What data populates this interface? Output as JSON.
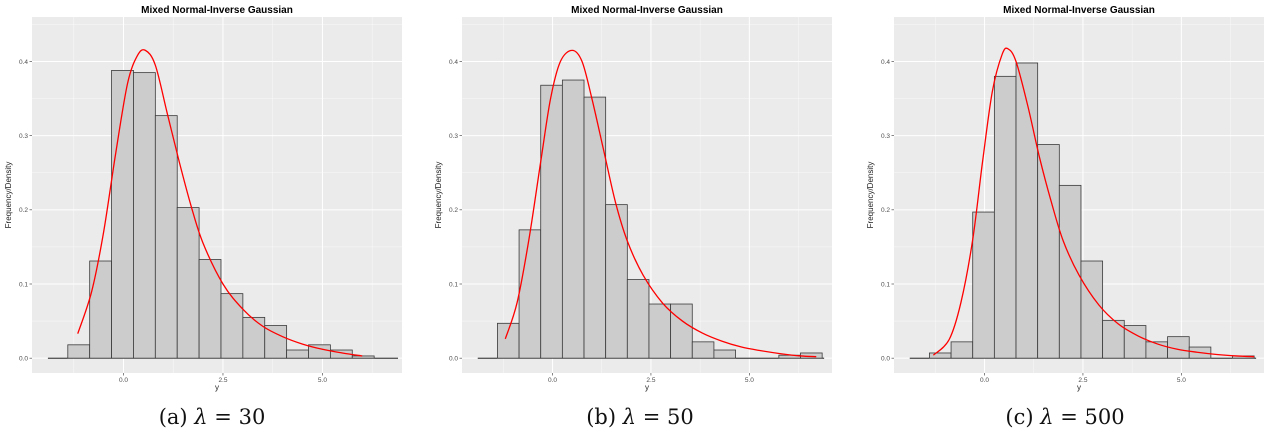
{
  "captions": [
    {
      "letter": "(a)",
      "symbol": "λ",
      "eq": "=",
      "value": "30"
    },
    {
      "letter": "(b)",
      "symbol": "λ",
      "eq": "=",
      "value": "50"
    },
    {
      "letter": "(c)",
      "symbol": "λ",
      "eq": "=",
      "value": "500"
    }
  ],
  "colors": {
    "panel_background": "#ebebeb",
    "grid_major": "#ffffff",
    "bar_fill": "#cccccc",
    "bar_outline": "#3a3a3a",
    "density_curve": "#ff0000"
  },
  "chart_data": [
    {
      "type": "bar",
      "title": "Mixed Normal-Inverse Gaussian",
      "xlabel": "y",
      "ylabel": "Frequency/Density",
      "xlim": [
        -2.3,
        7.0
      ],
      "ylim": [
        -0.02,
        0.46
      ],
      "xticks": [
        0.0,
        2.5,
        5.0
      ],
      "xtick_labels": [
        "0.0",
        "2.5",
        "5.0"
      ],
      "yticks": [
        0.0,
        0.1,
        0.2,
        0.3,
        0.4
      ],
      "ytick_labels": [
        "0.0",
        "0.1",
        "0.2",
        "0.3",
        "0.4"
      ],
      "grid": true,
      "bins": [
        {
          "x0": -1.4,
          "x1": -0.85,
          "value": 0.018
        },
        {
          "x0": -0.85,
          "x1": -0.3,
          "value": 0.131
        },
        {
          "x0": -0.3,
          "x1": 0.25,
          "value": 0.388
        },
        {
          "x0": 0.25,
          "x1": 0.8,
          "value": 0.385
        },
        {
          "x0": 0.8,
          "x1": 1.35,
          "value": 0.327
        },
        {
          "x0": 1.35,
          "x1": 1.9,
          "value": 0.203
        },
        {
          "x0": 1.9,
          "x1": 2.45,
          "value": 0.133
        },
        {
          "x0": 2.45,
          "x1": 3.0,
          "value": 0.087
        },
        {
          "x0": 3.0,
          "x1": 3.55,
          "value": 0.055
        },
        {
          "x0": 3.55,
          "x1": 4.1,
          "value": 0.044
        },
        {
          "x0": 4.1,
          "x1": 4.65,
          "value": 0.011
        },
        {
          "x0": 4.65,
          "x1": 5.2,
          "value": 0.018
        },
        {
          "x0": 5.2,
          "x1": 5.75,
          "value": 0.011
        },
        {
          "x0": 5.75,
          "x1": 6.3,
          "value": 0.003
        }
      ],
      "baseline": [
        -1.9,
        6.9
      ],
      "density_curve": [
        [
          -1.15,
          0.033
        ],
        [
          -0.8,
          0.09
        ],
        [
          -0.5,
          0.17
        ],
        [
          -0.2,
          0.275
        ],
        [
          0.1,
          0.37
        ],
        [
          0.35,
          0.408
        ],
        [
          0.55,
          0.415
        ],
        [
          0.8,
          0.395
        ],
        [
          1.1,
          0.33
        ],
        [
          1.4,
          0.265
        ],
        [
          1.7,
          0.205
        ],
        [
          2.0,
          0.155
        ],
        [
          2.5,
          0.1
        ],
        [
          3.0,
          0.066
        ],
        [
          3.5,
          0.043
        ],
        [
          4.0,
          0.029
        ],
        [
          4.5,
          0.019
        ],
        [
          5.0,
          0.012
        ],
        [
          5.5,
          0.007
        ],
        [
          6.0,
          0.003
        ]
      ]
    },
    {
      "type": "bar",
      "title": "Mixed Normal-Inverse Gaussian",
      "xlabel": "y",
      "ylabel": "Frequency/Density",
      "xlim": [
        -2.3,
        7.1
      ],
      "ylim": [
        -0.02,
        0.46
      ],
      "xticks": [
        0.0,
        2.5,
        5.0
      ],
      "xtick_labels": [
        "0.0",
        "2.5",
        "5.0"
      ],
      "yticks": [
        0.0,
        0.1,
        0.2,
        0.3,
        0.4
      ],
      "ytick_labels": [
        "0.0",
        "0.1",
        "0.2",
        "0.3",
        "0.4"
      ],
      "grid": true,
      "bins": [
        {
          "x0": -1.4,
          "x1": -0.85,
          "value": 0.047
        },
        {
          "x0": -0.85,
          "x1": -0.3,
          "value": 0.173
        },
        {
          "x0": -0.3,
          "x1": 0.25,
          "value": 0.368
        },
        {
          "x0": 0.25,
          "x1": 0.8,
          "value": 0.375
        },
        {
          "x0": 0.8,
          "x1": 1.35,
          "value": 0.352
        },
        {
          "x0": 1.35,
          "x1": 1.9,
          "value": 0.207
        },
        {
          "x0": 1.9,
          "x1": 2.45,
          "value": 0.106
        },
        {
          "x0": 2.45,
          "x1": 3.0,
          "value": 0.073
        },
        {
          "x0": 3.0,
          "x1": 3.55,
          "value": 0.073
        },
        {
          "x0": 3.55,
          "x1": 4.1,
          "value": 0.022
        },
        {
          "x0": 4.1,
          "x1": 4.65,
          "value": 0.011
        },
        {
          "x0": 4.65,
          "x1": 5.2,
          "value": 0.0
        },
        {
          "x0": 5.2,
          "x1": 5.75,
          "value": 0.0
        },
        {
          "x0": 5.75,
          "x1": 6.3,
          "value": 0.004
        },
        {
          "x0": 6.3,
          "x1": 6.85,
          "value": 0.007
        }
      ],
      "baseline": [
        -1.9,
        6.9
      ],
      "density_curve": [
        [
          -1.2,
          0.026
        ],
        [
          -0.9,
          0.075
        ],
        [
          -0.6,
          0.16
        ],
        [
          -0.3,
          0.265
        ],
        [
          -0.05,
          0.35
        ],
        [
          0.2,
          0.4
        ],
        [
          0.5,
          0.415
        ],
        [
          0.75,
          0.4
        ],
        [
          1.0,
          0.35
        ],
        [
          1.3,
          0.28
        ],
        [
          1.6,
          0.21
        ],
        [
          1.9,
          0.158
        ],
        [
          2.3,
          0.112
        ],
        [
          2.8,
          0.074
        ],
        [
          3.3,
          0.05
        ],
        [
          3.8,
          0.034
        ],
        [
          4.3,
          0.023
        ],
        [
          4.8,
          0.015
        ],
        [
          5.3,
          0.01
        ],
        [
          5.8,
          0.006
        ],
        [
          6.3,
          0.003
        ],
        [
          6.7,
          0.002
        ]
      ]
    },
    {
      "type": "bar",
      "title": "Mixed Normal-Inverse Gaussian",
      "xlabel": "y",
      "ylabel": "Frequency/Density",
      "xlim": [
        -2.3,
        7.1
      ],
      "ylim": [
        -0.02,
        0.46
      ],
      "xticks": [
        0.0,
        2.5,
        5.0
      ],
      "xtick_labels": [
        "0.0",
        "2.5",
        "5.0"
      ],
      "yticks": [
        0.0,
        0.1,
        0.2,
        0.3,
        0.4
      ],
      "ytick_labels": [
        "0.0",
        "0.1",
        "0.2",
        "0.3",
        "0.4"
      ],
      "grid": true,
      "bins": [
        {
          "x0": -1.4,
          "x1": -0.85,
          "value": 0.007
        },
        {
          "x0": -0.85,
          "x1": -0.3,
          "value": 0.022
        },
        {
          "x0": -0.3,
          "x1": 0.25,
          "value": 0.197
        },
        {
          "x0": 0.25,
          "x1": 0.8,
          "value": 0.38
        },
        {
          "x0": 0.8,
          "x1": 1.35,
          "value": 0.398
        },
        {
          "x0": 1.35,
          "x1": 1.9,
          "value": 0.288
        },
        {
          "x0": 1.9,
          "x1": 2.45,
          "value": 0.233
        },
        {
          "x0": 2.45,
          "x1": 3.0,
          "value": 0.131
        },
        {
          "x0": 3.0,
          "x1": 3.55,
          "value": 0.051
        },
        {
          "x0": 3.55,
          "x1": 4.1,
          "value": 0.044
        },
        {
          "x0": 4.1,
          "x1": 4.65,
          "value": 0.022
        },
        {
          "x0": 4.65,
          "x1": 5.2,
          "value": 0.029
        },
        {
          "x0": 5.2,
          "x1": 5.75,
          "value": 0.015
        },
        {
          "x0": 5.75,
          "x1": 6.3,
          "value": 0.0
        },
        {
          "x0": 6.3,
          "x1": 6.85,
          "value": 0.003
        }
      ],
      "baseline": [
        -1.9,
        6.9
      ],
      "density_curve": [
        [
          -1.3,
          0.004
        ],
        [
          -0.9,
          0.025
        ],
        [
          -0.6,
          0.075
        ],
        [
          -0.3,
          0.16
        ],
        [
          -0.05,
          0.265
        ],
        [
          0.2,
          0.36
        ],
        [
          0.45,
          0.41
        ],
        [
          0.6,
          0.417
        ],
        [
          0.8,
          0.4
        ],
        [
          1.1,
          0.34
        ],
        [
          1.4,
          0.27
        ],
        [
          1.7,
          0.21
        ],
        [
          2.0,
          0.158
        ],
        [
          2.4,
          0.112
        ],
        [
          2.9,
          0.072
        ],
        [
          3.4,
          0.046
        ],
        [
          3.9,
          0.03
        ],
        [
          4.4,
          0.019
        ],
        [
          4.9,
          0.012
        ],
        [
          5.4,
          0.008
        ],
        [
          5.9,
          0.005
        ],
        [
          6.4,
          0.003
        ],
        [
          6.85,
          0.002
        ]
      ]
    }
  ]
}
